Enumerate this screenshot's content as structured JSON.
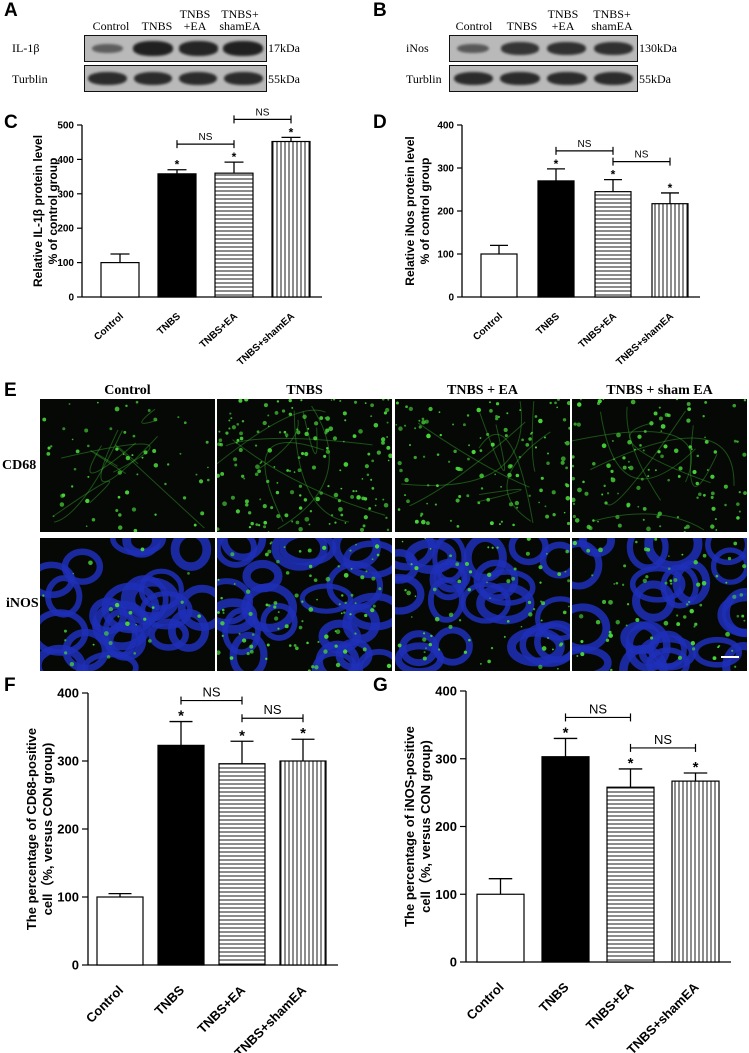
{
  "panel_letters": [
    "A",
    "B",
    "C",
    "D",
    "E",
    "F",
    "G"
  ],
  "blot_a": {
    "columns": [
      "Control",
      "TNBS",
      "TNBS\n+EA",
      "TNBS+\nshamEA"
    ],
    "rows": [
      {
        "label": "IL-1β",
        "size": "17kDa",
        "intensity": [
          0.35,
          0.95,
          0.9,
          0.95
        ]
      },
      {
        "label": "Turblin",
        "size": "55kDa",
        "intensity": [
          0.85,
          0.85,
          0.85,
          0.85
        ]
      }
    ]
  },
  "blot_b": {
    "columns": [
      "Control",
      "TNBS",
      "TNBS\n+EA",
      "TNBS+\nshamEA"
    ],
    "rows": [
      {
        "label": "iNos",
        "size": "130kDa",
        "intensity": [
          0.4,
          0.75,
          0.8,
          0.8
        ]
      },
      {
        "label": "Turblin",
        "size": "55kDa",
        "intensity": [
          0.85,
          0.85,
          0.85,
          0.85
        ]
      }
    ]
  },
  "chart_data": [
    {
      "panel": "C",
      "type": "bar",
      "categories": [
        "Control",
        "TNBS",
        "TNBS+EA",
        "TNBS+shamEA"
      ],
      "values": [
        100,
        358,
        360,
        452
      ],
      "errors": [
        25,
        12,
        32,
        12
      ],
      "significance": [
        "",
        "*",
        "*",
        "*"
      ],
      "ylabel": "Relative IL-1β  protein level\n% of control group",
      "ylim": [
        0,
        500
      ],
      "yticks": [
        0,
        100,
        200,
        300,
        400,
        500
      ],
      "brackets": [
        {
          "from": 1,
          "to": 2,
          "label": "NS"
        },
        {
          "from": 2,
          "to": 3,
          "label": "NS"
        }
      ],
      "fills": [
        "white",
        "black",
        "hlines",
        "vlines"
      ]
    },
    {
      "panel": "D",
      "type": "bar",
      "categories": [
        "Control",
        "TNBS",
        "TNBS+EA",
        "TNBS+shamEA"
      ],
      "values": [
        100,
        270,
        245,
        217
      ],
      "errors": [
        20,
        28,
        28,
        25
      ],
      "significance": [
        "",
        "*",
        "*",
        "*"
      ],
      "ylabel": "Relative  iNos protein level\n% of control group",
      "ylim": [
        0,
        400
      ],
      "yticks": [
        0,
        100,
        200,
        300,
        400
      ],
      "brackets": [
        {
          "from": 1,
          "to": 2,
          "label": "NS"
        },
        {
          "from": 2,
          "to": 3,
          "label": "NS"
        }
      ],
      "fills": [
        "white",
        "black",
        "hlines",
        "vlines"
      ]
    },
    {
      "panel": "F",
      "type": "bar",
      "categories": [
        "Control",
        "TNBS",
        "TNBS+EA",
        "TNBS+shamEA"
      ],
      "values": [
        100,
        323,
        296,
        300
      ],
      "errors": [
        5,
        35,
        33,
        32
      ],
      "significance": [
        "",
        "*",
        "*",
        "*"
      ],
      "ylabel": "The percentage of CD68-positive\ncell（%, versus CON group)",
      "ylim": [
        0,
        400
      ],
      "yticks": [
        0,
        100,
        200,
        300,
        400
      ],
      "brackets": [
        {
          "from": 1,
          "to": 2,
          "label": "NS"
        },
        {
          "from": 2,
          "to": 3,
          "label": "NS"
        }
      ],
      "fills": [
        "white",
        "black",
        "hlines",
        "vlines"
      ]
    },
    {
      "panel": "G",
      "type": "bar",
      "categories": [
        "Control",
        "TNBS",
        "TNBS+EA",
        "TNBS+shamEA"
      ],
      "values": [
        100,
        303,
        258,
        267
      ],
      "errors": [
        23,
        27,
        27,
        12
      ],
      "significance": [
        "",
        "*",
        "*",
        "*"
      ],
      "ylabel": "The percentage of iNOS-positive\ncell（%, versus CON group)",
      "ylim": [
        0,
        400
      ],
      "yticks": [
        0,
        100,
        200,
        300,
        400
      ],
      "brackets": [
        {
          "from": 1,
          "to": 2,
          "label": "NS"
        },
        {
          "from": 2,
          "to": 3,
          "label": "NS"
        }
      ],
      "fills": [
        "white",
        "black",
        "hlines",
        "vlines"
      ]
    }
  ],
  "micrographs": {
    "columns": [
      "Control",
      "TNBS",
      "TNBS + EA",
      "TNBS + sham EA"
    ],
    "rows": [
      "CD68",
      "iNOS"
    ],
    "colors": {
      "background": "#050805",
      "signal": "#49d63a",
      "nucleus": "#1f2fb8"
    }
  }
}
